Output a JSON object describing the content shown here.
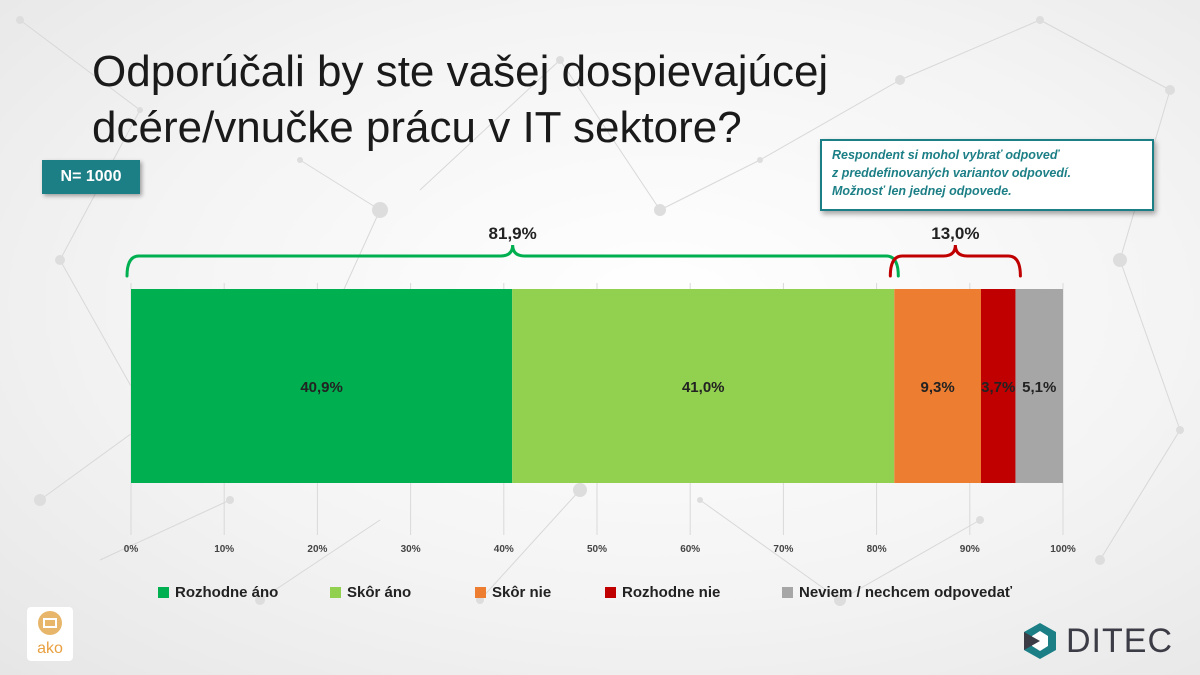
{
  "title_line1": "Odporúčali by ste vašej dospievajúcej",
  "title_line2": "dcére/vnučke prácu v IT sektore?",
  "sample_badge": "N= 1000",
  "note": {
    "line1": "Respondent si mohol vybrať odpoveď",
    "line2": "z preddefinovaných variantov odpovedí.",
    "line3": "Možnosť len jednej odpovede."
  },
  "brackets": [
    {
      "label": "81,9%",
      "from": 0,
      "to": 81.9,
      "color": "#00b050"
    },
    {
      "label": "13,0%",
      "from": 81.9,
      "to": 95.0,
      "color": "#c00000"
    }
  ],
  "chart_data": {
    "type": "bar",
    "orientation": "horizontal-stacked",
    "title": "Odporúčali by ste vašej dospievajúcej dcére/vnučke prácu v IT sektore?",
    "xlim": [
      0,
      100
    ],
    "x_ticks": [
      "0%",
      "10%",
      "20%",
      "30%",
      "40%",
      "50%",
      "60%",
      "70%",
      "80%",
      "90%",
      "100%"
    ],
    "series": [
      {
        "name": "Rozhodne áno",
        "value": 40.9,
        "label": "40,9%",
        "color": "#00b050"
      },
      {
        "name": "Skôr áno",
        "value": 41.0,
        "label": "41,0%",
        "color": "#92d050"
      },
      {
        "name": "Skôr nie",
        "value": 9.3,
        "label": "9,3%",
        "color": "#ed7d31"
      },
      {
        "name": "Rozhodne nie",
        "value": 3.7,
        "label": "3,7%",
        "color": "#c00000"
      },
      {
        "name": "Neviem / nechcem odpovedať",
        "value": 5.1,
        "label": "5,1%",
        "color": "#a6a6a6"
      }
    ],
    "legend_position": "bottom"
  },
  "logos": {
    "ako_text": "ako",
    "ditec_text": "DITEC"
  }
}
